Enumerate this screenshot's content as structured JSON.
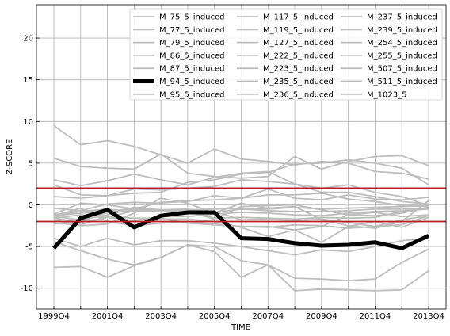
{
  "chart_data": {
    "type": "line",
    "xlabel": "TIME",
    "ylabel": "Z-SCORE",
    "ylim": [
      -12.5,
      24
    ],
    "grid": true,
    "legend_position": "top-right",
    "legend_columns": 3,
    "x_categories": [
      "1999Q4",
      "2000Q4",
      "2001Q4",
      "2002Q4",
      "2003Q4",
      "2004Q4",
      "2005Q4",
      "2006Q4",
      "2007Q4",
      "2008Q4",
      "2009Q4",
      "2010Q4",
      "2011Q4",
      "2012Q4",
      "2013Q4"
    ],
    "x_tick_labels": [
      "1999Q4",
      "2001Q4",
      "2003Q4",
      "2005Q4",
      "2007Q4",
      "2009Q4",
      "2011Q4",
      "2013Q4"
    ],
    "y_ticks": [
      -10,
      -5,
      0,
      5,
      10,
      15,
      20
    ],
    "threshold_lines": [
      2,
      -2
    ],
    "colors": {
      "series": "#bdbdbd",
      "highlight": "#000000",
      "threshold": "#b22222",
      "grid": "#b0b0b0"
    },
    "highlight_series": "M_94_5_induced",
    "series": [
      {
        "name": "M_75_5_induced",
        "values": [
          9.5,
          7.2,
          7.7,
          7.0,
          6.0,
          5.0,
          6.7,
          5.5,
          5.2,
          4.8,
          5.2,
          5.0,
          4.0,
          3.8,
          3.1
        ]
      },
      {
        "name": "M_77_5_induced",
        "values": [
          5.6,
          4.6,
          4.4,
          4.3,
          6.1,
          3.8,
          3.4,
          3.2,
          3.4,
          5.8,
          4.3,
          5.2,
          5.8,
          5.9,
          4.7
        ]
      },
      {
        "name": "M_79_5_induced",
        "values": [
          3.0,
          2.3,
          2.9,
          3.7,
          3.0,
          2.4,
          3.3,
          3.8,
          4.0,
          2.5,
          2.0,
          2.4,
          1.5,
          1.0,
          -0.1
        ]
      },
      {
        "name": "M_86_5_induced",
        "values": [
          2.4,
          1.2,
          1.1,
          1.4,
          1.5,
          2.7,
          3.0,
          3.7,
          3.9,
          4.9,
          5.0,
          5.4,
          5.0,
          4.4,
          2.4
        ]
      },
      {
        "name": "M_87_5_induced",
        "values": [
          1.0,
          0.8,
          1.1,
          1.9,
          1.8,
          2.0,
          2.2,
          3.0,
          2.8,
          2.5,
          1.5,
          1.5,
          1.0,
          0.4,
          0.1
        ]
      },
      {
        "name": "M_94_5_induced",
        "values": [
          -5.2,
          -1.6,
          -0.6,
          -2.7,
          -1.3,
          -0.9,
          -0.9,
          -4.0,
          -4.1,
          -4.6,
          -4.9,
          -4.8,
          -4.5,
          -5.2,
          -3.7
        ]
      },
      {
        "name": "M_95_5_induced",
        "values": [
          -1.8,
          -2.5,
          -2.3,
          -1.0,
          0.8,
          0.2,
          -1.0,
          0.2,
          -0.4,
          -0.2,
          -1.8,
          -2.5,
          -2.8,
          -2.0,
          0.5
        ]
      },
      {
        "name": "M_117_5_induced",
        "values": [
          -1.4,
          -1.8,
          -1.2,
          -0.4,
          -0.8,
          -0.8,
          -1.7,
          -0.2,
          -0.1,
          0.0,
          -0.6,
          -1.2,
          -1.3,
          -1.0,
          -0.3
        ]
      },
      {
        "name": "M_119_5_induced",
        "values": [
          -0.4,
          -0.7,
          0.1,
          0.3,
          0.2,
          0.5,
          0.6,
          0.8,
          1.2,
          1.2,
          1.4,
          0.7,
          0.4,
          -0.1,
          -0.2
        ]
      },
      {
        "name": "M_127_5_induced",
        "values": [
          -2.2,
          -2.4,
          -1.4,
          -1.6,
          -1.6,
          -2.2,
          -2.4,
          -2.6,
          -2.6,
          -3.0,
          -2.6,
          -1.2,
          -0.9,
          -1.4,
          -1.2
        ]
      },
      {
        "name": "M_222_5_induced",
        "values": [
          -1.6,
          -1.2,
          -1.5,
          -0.7,
          -0.8,
          -0.6,
          -1.6,
          -1.5,
          -1.6,
          -1.7,
          -1.5,
          -1.6,
          -1.5,
          -0.8,
          -0.4
        ]
      },
      {
        "name": "M_223_5_induced",
        "values": [
          -1.3,
          -1.0,
          -0.7,
          -2.5,
          -2.2,
          -2.0,
          -2.3,
          -2.6,
          -2.7,
          -2.4,
          -2.5,
          -2.8,
          -2.6,
          -2.4,
          -1.3
        ]
      },
      {
        "name": "M_235_5_induced",
        "values": [
          -1.2,
          -0.7,
          -0.8,
          -0.6,
          -0.6,
          -0.8,
          -0.8,
          -1.8,
          -1.7,
          -1.9,
          -1.7,
          -2.1,
          -2.6,
          -1.8,
          -1.3
        ]
      },
      {
        "name": "M_236_5_induced",
        "values": [
          -4.0,
          -5.0,
          -4.0,
          -4.8,
          -4.3,
          -4.3,
          -4.6,
          -5.0,
          -5.5,
          -6.0,
          -5.4,
          -5.6,
          -5.0,
          -4.3,
          -4.0
        ]
      },
      {
        "name": "M_237_5_induced",
        "values": [
          -4.4,
          -5.5,
          -6.5,
          -7.2,
          -6.3,
          -4.8,
          -5.0,
          -6.7,
          -7.2,
          -8.8,
          -8.9,
          -9.1,
          -8.9,
          -6.9,
          -5.3
        ]
      },
      {
        "name": "M_239_5_induced",
        "values": [
          -7.5,
          -7.4,
          -8.7,
          -7.3,
          -6.3,
          -4.8,
          -5.6,
          -8.7,
          -7.2,
          -10.3,
          -10.1,
          -10.2,
          -10.3,
          -10.2,
          -7.9
        ]
      },
      {
        "name": "M_254_5_induced",
        "values": [
          -1.1,
          0.2,
          0.0,
          -0.5,
          0.3,
          0.4,
          1.1,
          0.8,
          1.9,
          0.8,
          0.6,
          1.2,
          0.7,
          0.6,
          0.9
        ]
      },
      {
        "name": "M_255_5_induced",
        "values": [
          -1.3,
          -0.4,
          -2.0,
          -2.5,
          -1.7,
          -1.7,
          -2.0,
          -2.7,
          -3.8,
          -3.0,
          -4.5,
          -2.6,
          -2.0,
          -2.7,
          -1.5
        ]
      },
      {
        "name": "M_507_5_induced",
        "values": [
          -1.6,
          -2.1,
          -1.5,
          -1.9,
          -1.4,
          -1.4,
          -1.1,
          -0.9,
          -1.0,
          -1.2,
          -1.3,
          -1.0,
          -0.8,
          -0.7,
          -0.5
        ]
      },
      {
        "name": "M_511_5_induced",
        "values": [
          -2.3,
          -2.0,
          -0.9,
          -0.3,
          -0.6,
          -0.5,
          -0.9,
          -0.5,
          -0.7,
          -0.8,
          -0.8,
          -0.7,
          -0.5,
          -0.5,
          -0.4
        ]
      },
      {
        "name": "M_1023_5",
        "values": [
          -1.4,
          -0.8,
          -0.5,
          -0.8,
          -0.7,
          -0.6,
          -0.5,
          -0.4,
          -0.5,
          -0.3,
          -0.5,
          -0.4,
          -0.3,
          -0.2,
          -0.1
        ]
      }
    ]
  }
}
